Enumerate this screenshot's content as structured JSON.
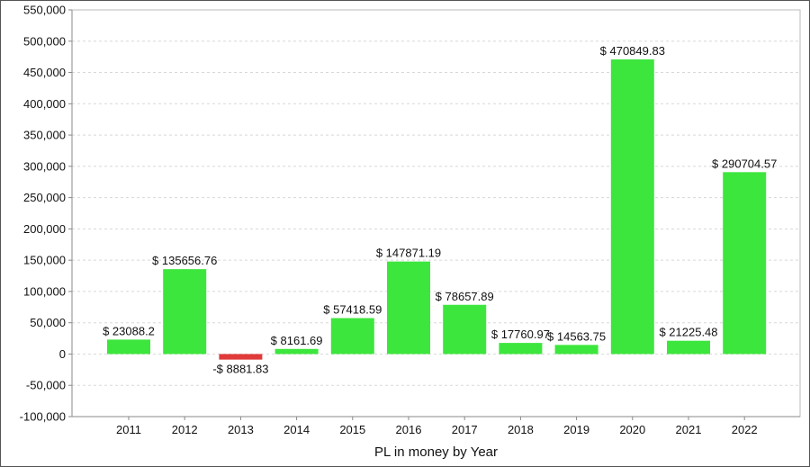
{
  "chart_data": {
    "type": "bar",
    "categories": [
      "2011",
      "2012",
      "2013",
      "2014",
      "2015",
      "2016",
      "2017",
      "2018",
      "2019",
      "2020",
      "2021",
      "2022"
    ],
    "values": [
      23088.2,
      135656.76,
      -8881.83,
      8161.69,
      57418.59,
      147871.19,
      78657.89,
      17760.97,
      14563.75,
      470849.83,
      21225.48,
      290704.57
    ],
    "data_labels": [
      "$ 23088.2",
      "$ 135656.76",
      "-$ 8881.83",
      "$ 8161.69",
      "$ 57418.59",
      "$ 147871.19",
      "$ 78657.89",
      "$ 17760.97",
      "$ 14563.75",
      "$ 470849.83",
      "$ 21225.48",
      "$ 290704.57"
    ],
    "xlabel": "PL in money by Year",
    "ylabel": "",
    "ylim": [
      -100000,
      550000
    ],
    "yticks": [
      -100000,
      -50000,
      0,
      50000,
      100000,
      150000,
      200000,
      250000,
      300000,
      350000,
      400000,
      450000,
      500000,
      550000
    ],
    "ytick_labels": [
      "-100,000",
      "-50,000",
      "0",
      "50,000",
      "100,000",
      "150,000",
      "200,000",
      "250,000",
      "300,000",
      "350,000",
      "400,000",
      "450,000",
      "500,000",
      "550,000"
    ],
    "grid": true,
    "legend": "none",
    "colors": {
      "positive": "#3de63d",
      "negative": "#e03a3a",
      "grid": "#d8d8d8",
      "axis": "#888888"
    }
  }
}
